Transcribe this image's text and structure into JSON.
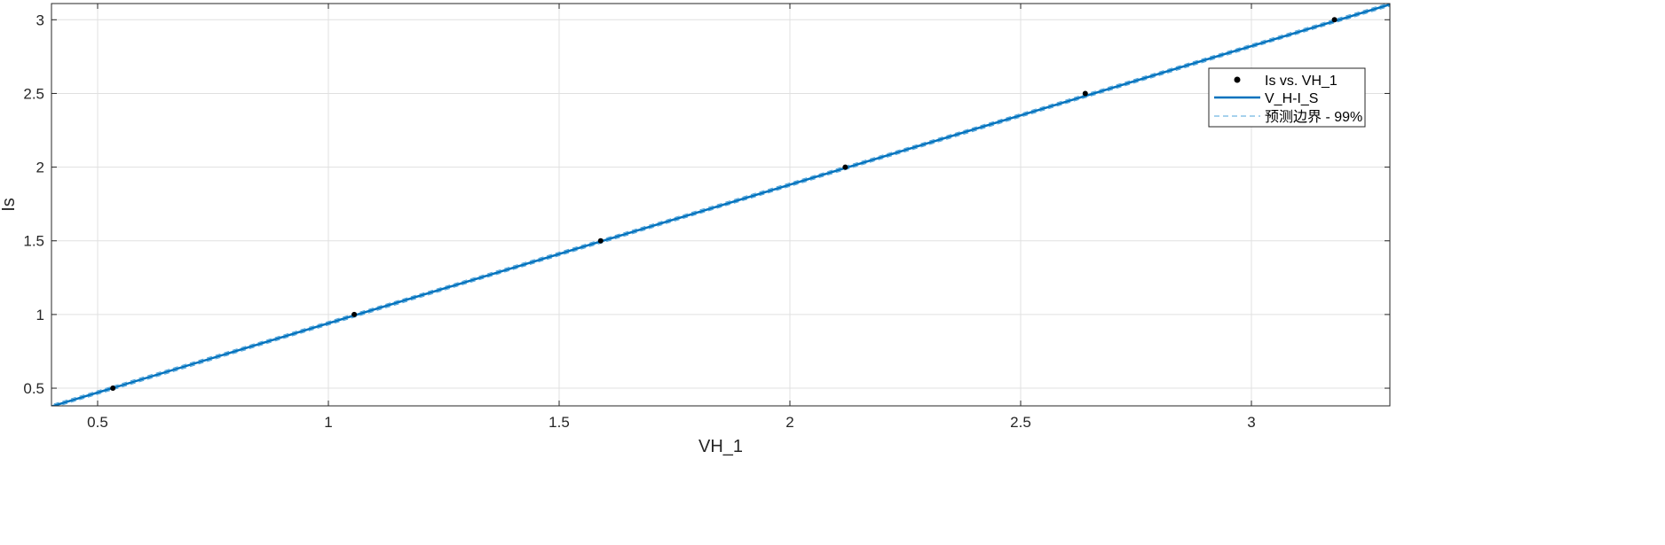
{
  "chart_data": {
    "type": "scatter",
    "title": "",
    "xlabel": "VH_1",
    "ylabel": "Is",
    "xlim": [
      0.4,
      3.3
    ],
    "ylim": [
      0.38,
      3.11
    ],
    "xticks": [
      0.5,
      1,
      1.5,
      2,
      2.5,
      3
    ],
    "xtick_labels": [
      "0.5",
      "1",
      "1.5",
      "2",
      "2.5",
      "3"
    ],
    "yticks": [
      0.5,
      1,
      1.5,
      2,
      2.5,
      3
    ],
    "ytick_labels": [
      "0.5",
      "1",
      "1.5",
      "2",
      "2.5",
      "3"
    ],
    "grid": true,
    "legend_position": "top-right",
    "colors": {
      "fit": "#0072BD",
      "bounds": "#4DA3DB",
      "points": "#000000",
      "grid": "#E0E0E0",
      "axes": "#262626"
    },
    "series": [
      {
        "name": "Is vs. VH_1",
        "kind": "points",
        "x": [
          0.533,
          1.056,
          1.59,
          2.12,
          2.64,
          3.18
        ],
        "y": [
          0.5,
          1.0,
          1.5,
          2.0,
          2.5,
          3.0
        ]
      },
      {
        "name": "V_H-I_S",
        "kind": "fit-line",
        "slope": 0.9405,
        "intercept": 0.0
      },
      {
        "name": "预测边界 - 99%",
        "kind": "bounds",
        "offset": 0.012
      }
    ]
  }
}
